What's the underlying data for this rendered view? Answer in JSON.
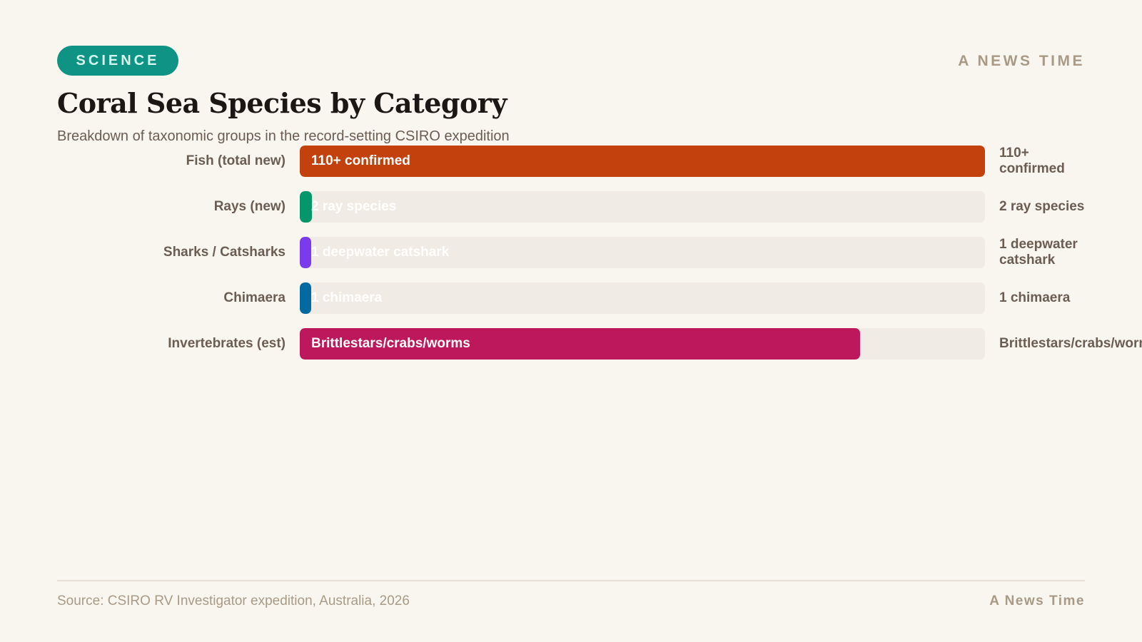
{
  "header": {
    "tag": "SCIENCE",
    "brand": "A NEWS TIME",
    "tag_color": "#0e9384"
  },
  "chart_data": {
    "type": "bar",
    "orientation": "horizontal",
    "title": "Coral Sea Species by Category",
    "subtitle": "Breakdown of taxonomic groups in the record-setting CSIRO expedition",
    "xlim": [
      0,
      110
    ],
    "categories": [
      "Fish (total new)",
      "Rays (new)",
      "Sharks / Catsharks",
      "Chimaera",
      "Invertebrates (est)"
    ],
    "values": [
      110,
      2,
      1,
      1,
      90
    ],
    "labels": [
      "110+ confirmed",
      "2 ray species",
      "1 deepwater catshark",
      "1 chimaera",
      "Brittlestars/crabs/worms"
    ],
    "colors": [
      "#c2410c",
      "#059669",
      "#7c3aed",
      "#0369a1",
      "#be185d"
    ],
    "grid": false,
    "legend": "none"
  },
  "footer": {
    "source": "Source: CSIRO RV Investigator expedition, Australia, 2026",
    "credit": "A News Time"
  }
}
